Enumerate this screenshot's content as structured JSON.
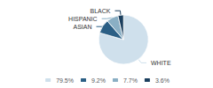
{
  "chart_data": {
    "type": "pie",
    "categories": [
      "WHITE",
      "ASIAN",
      "HISPANIC",
      "BLACK"
    ],
    "values": [
      79.5,
      9.2,
      7.7,
      3.6
    ],
    "value_labels": [
      "79.5%",
      "9.2%",
      "7.7%",
      "3.6%"
    ],
    "colors": [
      "#cfe0ec",
      "#2b5f85",
      "#8aafc4",
      "#1b3f5e"
    ],
    "legend": "bottom"
  }
}
